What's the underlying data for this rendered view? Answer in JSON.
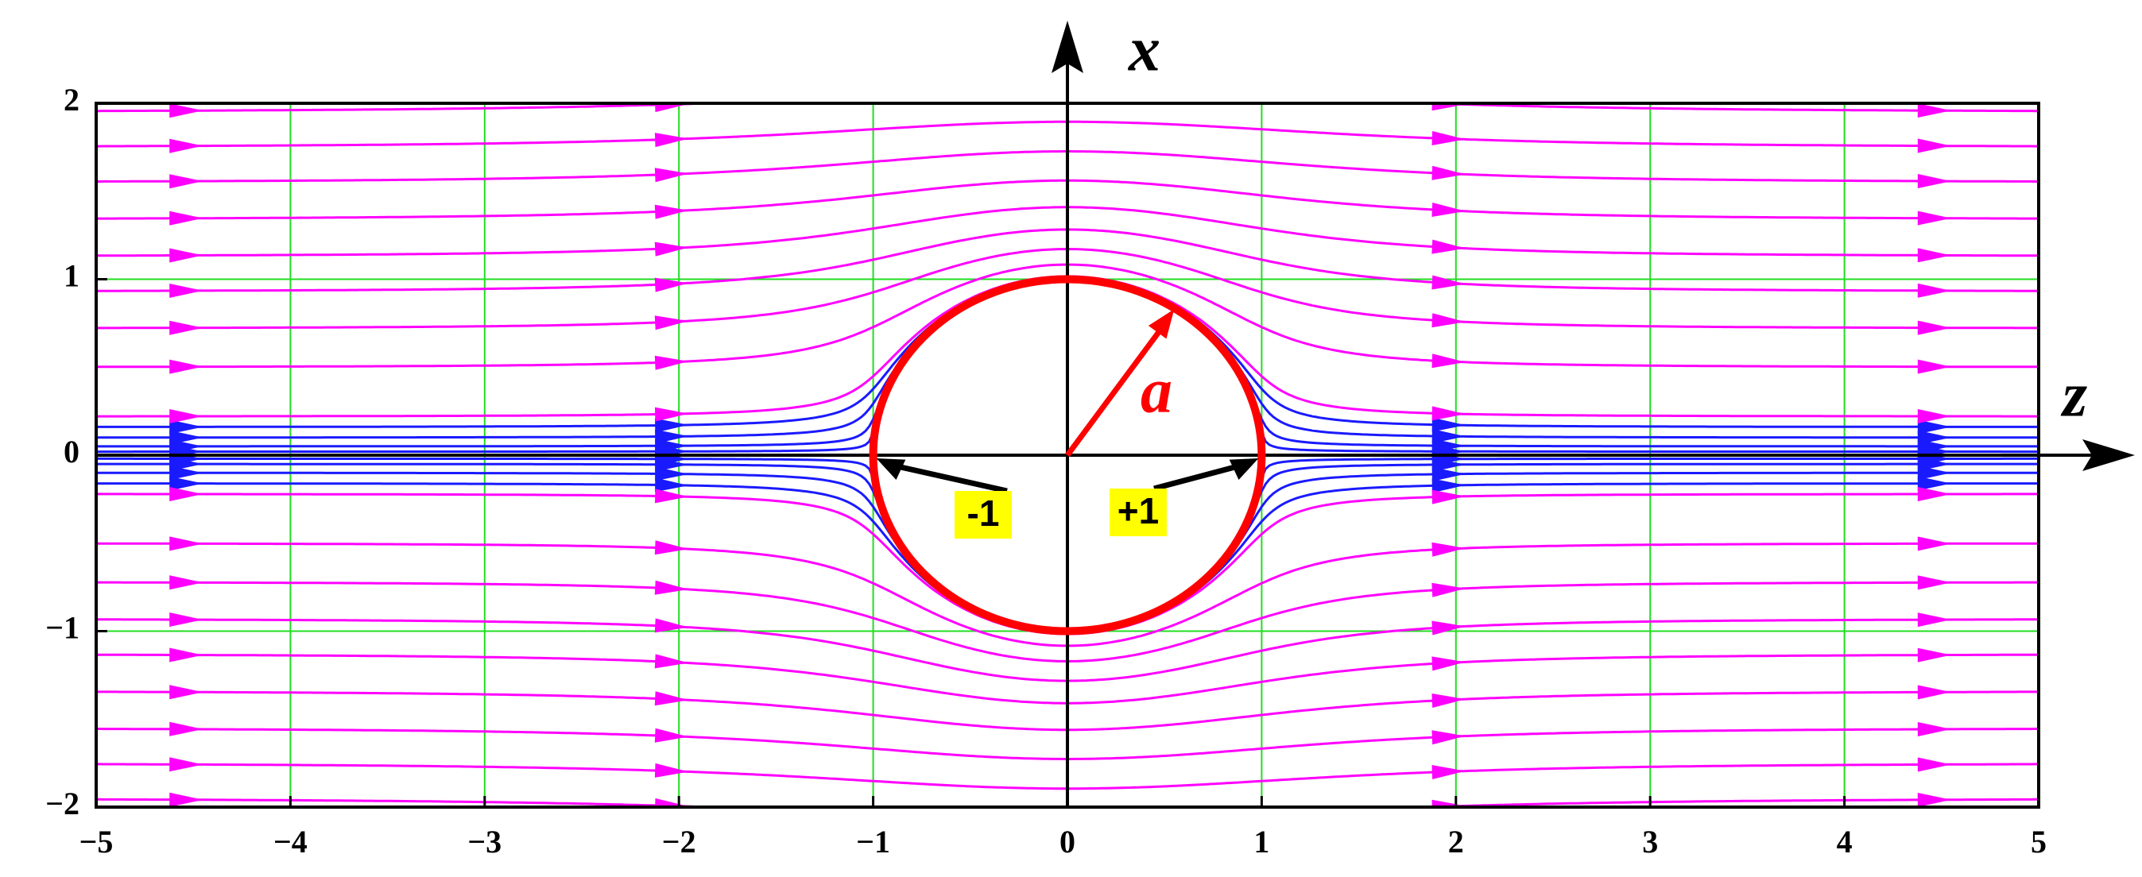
{
  "chart_data": {
    "type": "streamline",
    "x_label": "z",
    "y_label": "x",
    "xlim": [
      -5,
      5
    ],
    "ylim": [
      -2,
      2
    ],
    "xticks": [
      {
        "value": -5,
        "label": "−5"
      },
      {
        "value": -4,
        "label": "−4"
      },
      {
        "value": -3,
        "label": "−3"
      },
      {
        "value": -2,
        "label": "−2"
      },
      {
        "value": -1,
        "label": "−1"
      },
      0,
      1,
      2,
      3,
      4,
      5
    ],
    "yticks": [
      {
        "value": -2,
        "label": "−2"
      },
      {
        "value": -1,
        "label": "−1"
      },
      0,
      1,
      2
    ],
    "grid": true,
    "grid_color": "#22dd22",
    "stream_color": "#ff00ff",
    "near_stream_color": "#1a1aff",
    "sphere": {
      "radius": 1,
      "color": "#ff0000"
    },
    "annotations": [
      {
        "text": "a"
      },
      {
        "text": "-1"
      },
      {
        "text": "+1"
      }
    ]
  }
}
